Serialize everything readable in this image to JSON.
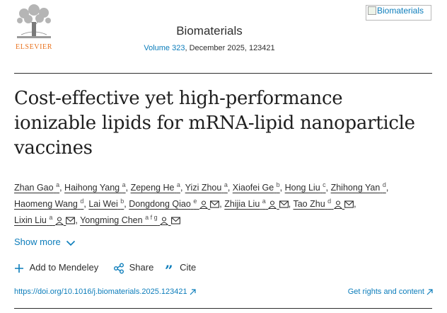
{
  "logo": {
    "text": "ELSEVIER"
  },
  "journal": {
    "name": "Biomaterials",
    "volume_link": "Volume 323",
    "issue_rest": ", December 2025, 123421"
  },
  "cover": {
    "alt": "Biomaterials"
  },
  "article": {
    "title_line1": "Cost-effective yet high-performance",
    "title_line2": "ionizable lipids for mRNA-lipid nanoparticle",
    "title_line3": "vaccines"
  },
  "authors": [
    {
      "name": "Zhan Gao",
      "sup": "a"
    },
    {
      "name": "Haihong Yang",
      "sup": "a"
    },
    {
      "name": "Zepeng He",
      "sup": "a"
    },
    {
      "name": "Yizi Zhou",
      "sup": "a"
    },
    {
      "name": "Xiaofei Ge",
      "sup": "b"
    },
    {
      "name": "Hong Liu",
      "sup": "c"
    },
    {
      "name": "Zhihong Yan",
      "sup": "d"
    },
    {
      "name": "Haomeng Wang",
      "sup": "d"
    },
    {
      "name": "Lai Wei",
      "sup": "b"
    },
    {
      "name": "Dongdong Qiao",
      "sup": "e"
    },
    {
      "name": "Zhijia Liu",
      "sup": "a"
    },
    {
      "name": "Tao Zhu",
      "sup": "d"
    },
    {
      "name": "Lixin Liu",
      "sup": "a"
    },
    {
      "name": "Yongming Chen",
      "sup": "a f g"
    }
  ],
  "show_more": "Show more",
  "actions": {
    "mendeley": "Add to Mendeley",
    "share": "Share",
    "cite": "Cite"
  },
  "doi": {
    "text": "https://doi.org/10.1016/j.biomaterials.2025.123421"
  },
  "rights": {
    "text": "Get rights and content"
  },
  "colors": {
    "link": "#0c7dbb",
    "elsevier_orange": "#e9711c"
  }
}
